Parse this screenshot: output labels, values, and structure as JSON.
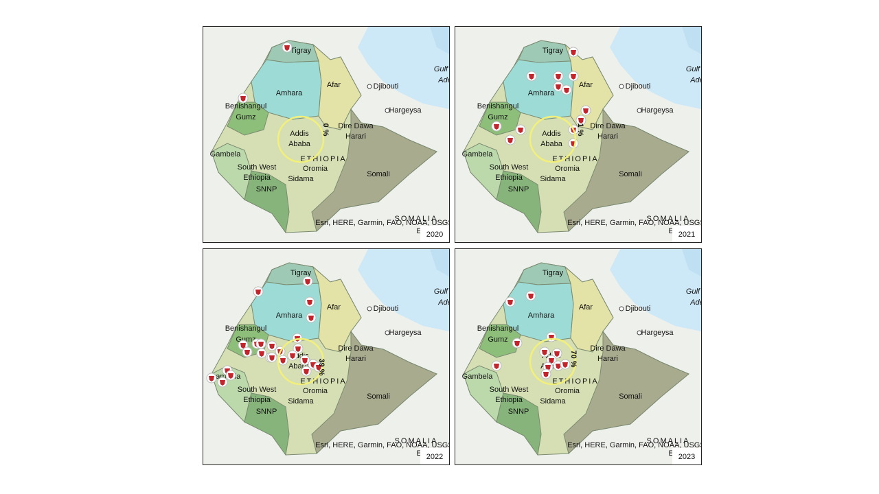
{
  "panels": [
    {
      "year": "2020",
      "percent": "0 %"
    },
    {
      "year": "2021",
      "percent": "1 %"
    },
    {
      "year": "2022",
      "percent": "39 %"
    },
    {
      "year": "2023",
      "percent": "70 %"
    }
  ],
  "labels": {
    "tigray": "Tigray",
    "amhara": "Amhara",
    "afar": "Afar",
    "benishangul": "Benishangul",
    "gumz": "Gumz",
    "addis": "Addis",
    "ababa": "Ababa",
    "diredawa": "Dire Dawa",
    "harari": "Harari",
    "djibouti": "Djibouti",
    "hargeysa": "Hargeysa",
    "gambela": "Gambela",
    "southwest": "South West",
    "ethiopia_region": "Ethiopia",
    "snnp": "SNNP",
    "oromia": "Oromia",
    "sidama": "Sidama",
    "somali": "Somali",
    "country": "ETHIOPIA",
    "somalia": "SOMALIA",
    "gulf": "Gulf",
    "aden": "Ade"
  },
  "attribution": "Esri, HERE, Garmin, FAO, NOAA, USGS,",
  "attribution2": "Esri"
}
